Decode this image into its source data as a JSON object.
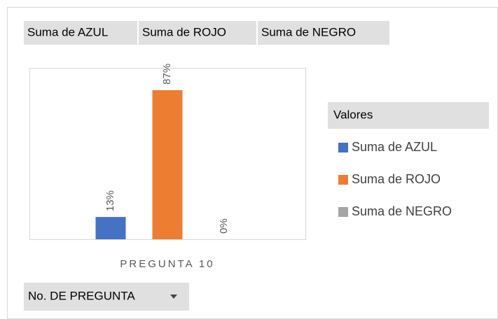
{
  "chart_data": {
    "type": "bar",
    "categories": [
      "PREGUNTA 10"
    ],
    "series": [
      {
        "name": "Suma de AZUL",
        "color": "#4472c4",
        "values": [
          13
        ],
        "value_labels": [
          "13%"
        ]
      },
      {
        "name": "Suma de ROJO",
        "color": "#ed7d31",
        "values": [
          87
        ],
        "value_labels": [
          "87%"
        ]
      },
      {
        "name": "Suma de NEGRO",
        "color": "#a5a5a5",
        "values": [
          0
        ],
        "value_labels": [
          "0%"
        ]
      }
    ],
    "ylim": [
      0,
      100
    ],
    "legend_title": "Valores",
    "axis_field": "No. DE PREGUNTA"
  }
}
